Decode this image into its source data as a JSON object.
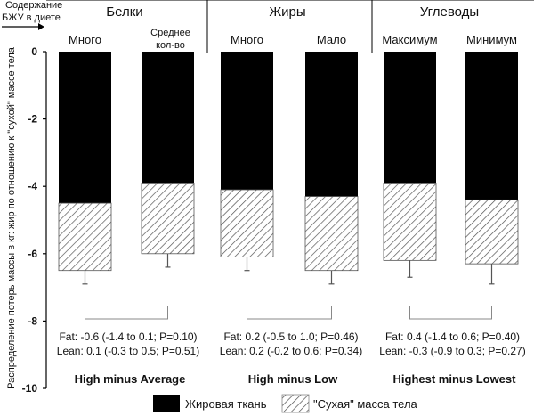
{
  "chart_data": {
    "type": "bar",
    "stacked": true,
    "corner_label": [
      "Содержание",
      "БЖУ в диете"
    ],
    "ylabel": "Распределение потерь массы в кг: жир по отношению к \"сухой\" массе тела",
    "ylim": [
      -10,
      0
    ],
    "yticks": [
      0,
      -2,
      -4,
      -6,
      -8,
      -10
    ],
    "groups": [
      {
        "title": "Белки",
        "categories": [
          "Много",
          "Среднее\nкол-во"
        ],
        "comparison": "High minus Average",
        "fat_stat": "Fat: -0.6 (-1.4 to 0.1; P=0.10)",
        "lean_stat": "Lean: 0.1 (-0.3 to 0.5; P=0.51)"
      },
      {
        "title": "Жиры",
        "categories": [
          "Много",
          "Мало"
        ],
        "comparison": "High minus Low",
        "fat_stat": "Fat: 0.2 (-0.5 to 1.0; P=0.46)",
        "lean_stat": "Lean: 0.2 (-0.2 to 0.6; P=0.34)"
      },
      {
        "title": "Углеводы",
        "categories": [
          "Максимум",
          "Минимум"
        ],
        "comparison": "Highest minus Lowest",
        "fat_stat": "Fat: 0.4 (-1.4 to 0.6; P=0.40)",
        "lean_stat": "Lean: -0.3 (-0.9 to 0.3; P=0.27)"
      }
    ],
    "series": [
      {
        "name": "Жировая ткань",
        "fill": "solid",
        "values": [
          -4.5,
          -3.9,
          -4.1,
          -4.3,
          -3.9,
          -4.4
        ]
      },
      {
        "name": "\"Сухая\" масса тела",
        "fill": "hatched",
        "values": [
          -2.0,
          -2.1,
          -2.0,
          -2.2,
          -2.3,
          -1.9
        ]
      }
    ],
    "totals": [
      -6.5,
      -6.0,
      -6.1,
      -6.5,
      -6.2,
      -6.3
    ],
    "error_low": [
      -6.9,
      -6.4,
      -6.5,
      -6.9,
      -6.7,
      -6.9
    ],
    "legend_position": "bottom",
    "colors": {
      "fat": "#000000",
      "lean_hatch": "#555555",
      "axis": "#000000"
    }
  }
}
